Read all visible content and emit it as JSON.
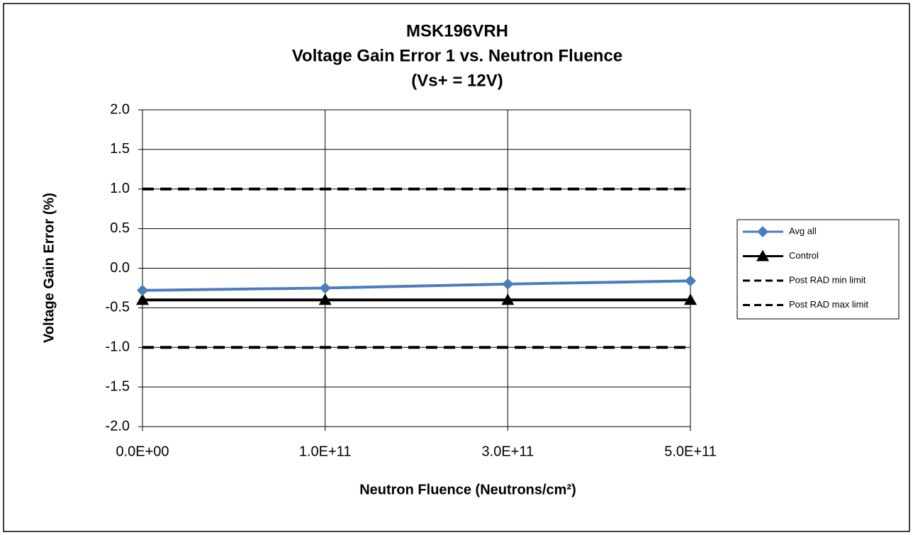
{
  "chart_data": {
    "type": "line",
    "title": [
      "MSK196VRH",
      "Voltage Gain Error 1 vs. Neutron Fluence",
      "(Vs+ = 12V)"
    ],
    "x_label": "Neutron Fluence (Neutrons/cm²)",
    "y_label": "Voltage Gain Error (%)",
    "categories": [
      "0.0E+00",
      "1.0E+11",
      "3.0E+11",
      "5.0E+11"
    ],
    "series": [
      {
        "name": "Avg all",
        "color": "#4a7ebb",
        "marker": "diamond",
        "line_style": "solid",
        "values": [
          -0.28,
          -0.25,
          -0.2,
          -0.16
        ]
      },
      {
        "name": "Control",
        "color": "#000000",
        "marker": "triangle",
        "line_style": "solid",
        "values": [
          -0.4,
          -0.4,
          -0.4,
          -0.4
        ]
      },
      {
        "name": "Post RAD min limit",
        "color": "#000000",
        "marker": "none",
        "line_style": "dashed",
        "values": [
          -1,
          -1,
          -1,
          -1
        ]
      },
      {
        "name": "Post RAD max limit",
        "color": "#000000",
        "marker": "none",
        "line_style": "dashed",
        "values": [
          1,
          1,
          1,
          1
        ]
      }
    ],
    "ylim": [
      -2,
      2
    ],
    "yticks": [
      {
        "value": -2,
        "label": "-2.0"
      },
      -1.5,
      {
        "value": -1,
        "label": "-1.0"
      },
      -0.5,
      {
        "value": 0,
        "label": "0.0"
      },
      0.5,
      {
        "value": 1,
        "label": "1.0"
      },
      1.5,
      {
        "value": 2,
        "label": "2.0"
      }
    ],
    "grid": true,
    "legend": "right"
  }
}
